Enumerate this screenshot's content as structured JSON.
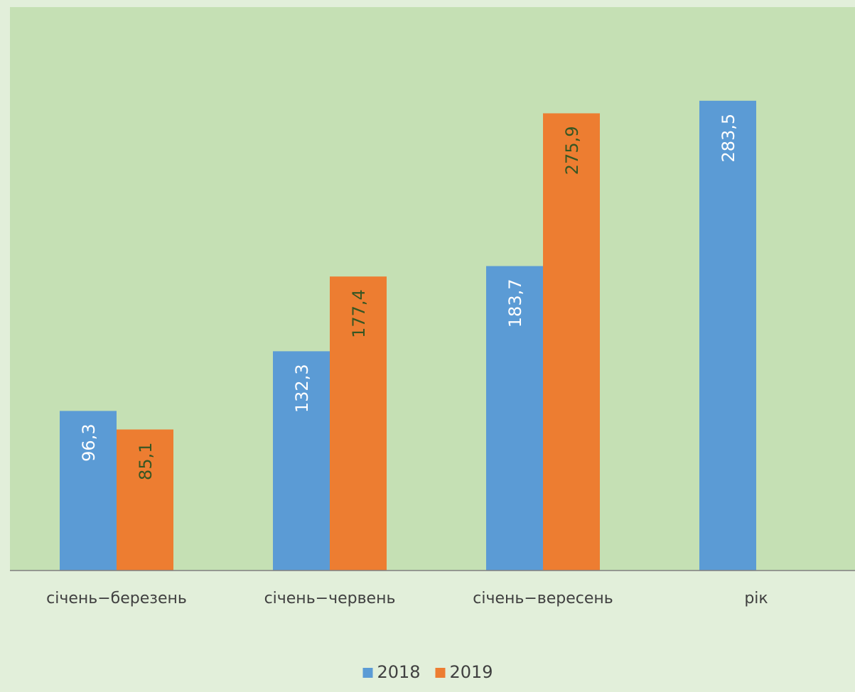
{
  "chart_data": {
    "type": "bar",
    "title": "",
    "xlabel": "",
    "ylabel": "",
    "ylim": [
      0,
      340
    ],
    "grid": false,
    "legend_position": "bottom",
    "categories": [
      "січень−березень",
      "січень−червень",
      "січень−вересень",
      "рік"
    ],
    "series": [
      {
        "name": "2018",
        "values": [
          96.3,
          132.3,
          183.7,
          283.5
        ],
        "labels": [
          "96,3",
          "132,3",
          "183,7",
          "283,5"
        ],
        "color": "#5B9BD5",
        "label_color": "#FFFFFF"
      },
      {
        "name": "2019",
        "values": [
          85.1,
          177.4,
          275.9,
          null
        ],
        "labels": [
          "85,1",
          "177,4",
          "275,9",
          ""
        ],
        "color": "#ED7D31",
        "label_color": "#375623"
      }
    ]
  },
  "colors": {
    "page_background": "#E2EFDA",
    "plot_background": "#C5E0B4",
    "axis_line": "#7F7F7F",
    "tick_label": "#404040"
  }
}
